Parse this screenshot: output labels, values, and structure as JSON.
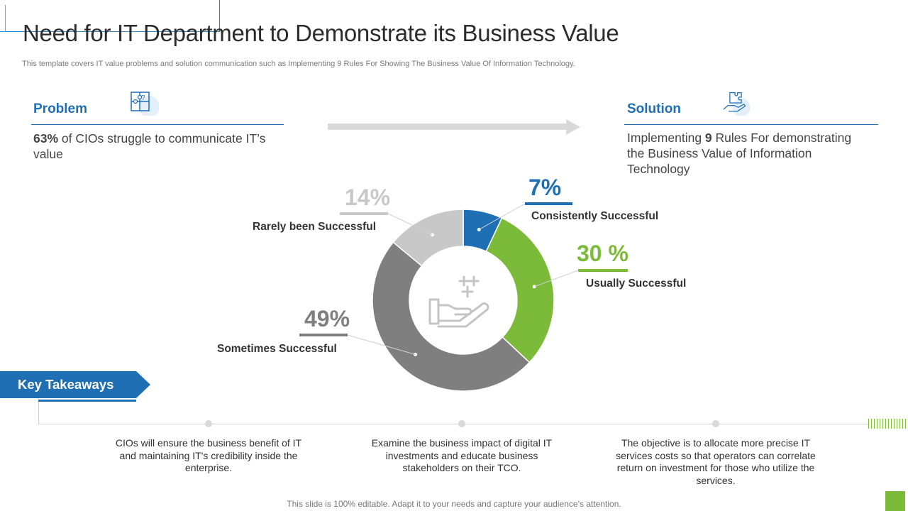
{
  "title": "Need for IT Department to Demonstrate its Business Value",
  "subtitle": "This template covers IT value problems and solution communication such as Implementing 9 Rules For Showing The Business Value Of Information Technology.",
  "problem": {
    "heading": "Problem",
    "stat": "63%",
    "text": " of CIOs struggle to communicate IT’s value",
    "icon": "puzzle-icon"
  },
  "solution": {
    "heading": "Solution",
    "text_pre": "Implementing ",
    "stat": "9",
    "text_post": " Rules For demonstrating the Business Value of Information Technology",
    "icon": "hand-puzzle-icon"
  },
  "chart_data": {
    "type": "pie",
    "variant": "donut",
    "categories": [
      "Consistently Successful",
      "Usually Successful",
      "Sometimes Successful",
      "Rarely been Successful"
    ],
    "values": [
      7,
      30,
      49,
      14
    ],
    "labels": [
      "7%",
      "30 %",
      "49%",
      "14%"
    ],
    "colors": [
      "#1f6fb5",
      "#7cbb3a",
      "#7f7f7f",
      "#c8c8c8"
    ],
    "center_icon": "hand-plus-icon"
  },
  "key_takeaways": {
    "label": "Key Takeaways",
    "items": [
      "CIOs will ensure the business benefit of IT and maintaining IT's credibility inside the enterprise.",
      "Examine the business impact of digital IT investments and educate business stakeholders on their TCO.",
      "The objective is to allocate more precise IT services costs so that operators can correlate return on investment for those who utilize the services."
    ]
  },
  "footer": "This slide is 100% editable. Adapt it to your needs and capture your audience’s attention."
}
